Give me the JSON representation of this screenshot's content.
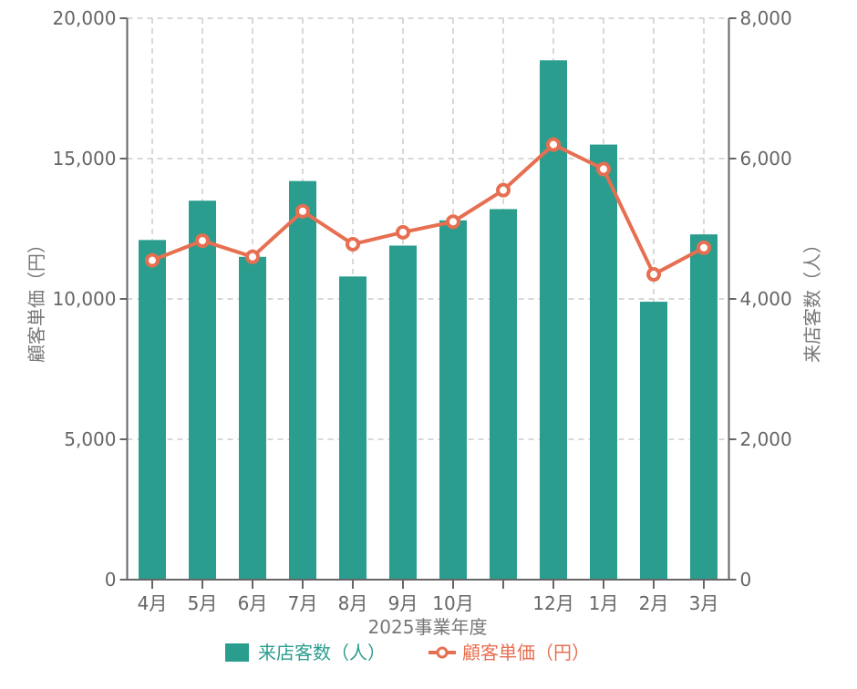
{
  "chart_data": {
    "type": "bar+line",
    "xlabel": "2025事業年度",
    "ylabel_left": "顧客単価（円）",
    "ylabel_right": "来店客数（人）",
    "categories": [
      "4月",
      "5月",
      "6月",
      "7月",
      "8月",
      "9月",
      "10月",
      "",
      "12月",
      "1月",
      "2月",
      "3月"
    ],
    "ylim_left": [
      0,
      20000
    ],
    "yticks_left": [
      "0",
      "5,000",
      "10,000",
      "15,000",
      "20,000"
    ],
    "ylim_right": [
      0,
      8000
    ],
    "yticks_right": [
      "0",
      "2,000",
      "4,000",
      "6,000",
      "8,000"
    ],
    "grid": true,
    "legend_placement": "bottom",
    "series": [
      {
        "name": "来店客数（人）",
        "type": "bar",
        "axis": "left",
        "color": "#2a9d8f",
        "values": [
          12100,
          13500,
          11500,
          14200,
          10800,
          11900,
          12800,
          13200,
          18500,
          15500,
          9900,
          12300
        ]
      },
      {
        "name": "顧客単価（円）",
        "type": "line",
        "axis": "right",
        "color": "#e76f51",
        "values": [
          4550,
          4830,
          4600,
          5250,
          4780,
          4950,
          5100,
          5550,
          6200,
          5850,
          4350,
          4730
        ]
      }
    ]
  }
}
